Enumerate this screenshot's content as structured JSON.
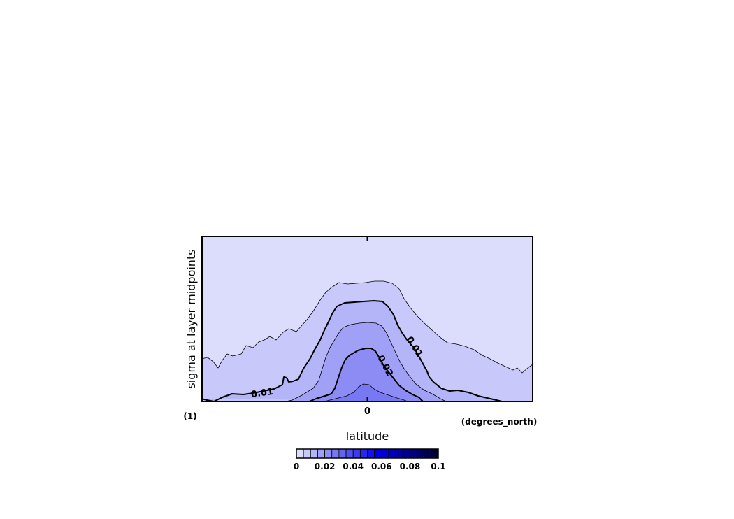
{
  "chart_data": {
    "type": "contour",
    "title": "",
    "xlabel": "latitude",
    "ylabel": "sigma at layer midpoints",
    "x_units": "(degrees_north)",
    "y_units": "(1)",
    "x_ticks": [
      0
    ],
    "x_tick_labels": [
      "0"
    ],
    "contour_levels": [
      0,
      0.005,
      0.01,
      0.015,
      0.02,
      0.025,
      0.03,
      0.035,
      0.04,
      0.045,
      0.05,
      0.055,
      0.06,
      0.065,
      0.07,
      0.075,
      0.08,
      0.085,
      0.09,
      0.095,
      0.1
    ],
    "contour_line_labels": [
      {
        "text": "0.01",
        "level": 0.01
      },
      {
        "text": "0.01",
        "level": 0.01
      },
      {
        "text": "0.02",
        "level": 0.02
      }
    ],
    "colorbar": {
      "min": 0,
      "max": 0.1,
      "tick_values": [
        0,
        0.02,
        0.04,
        0.06,
        0.08,
        0.1
      ],
      "tick_labels": [
        "0",
        "0.02",
        "0.04",
        "0.06",
        "0.08",
        "0.1"
      ],
      "colors": [
        "#dcdcfc",
        "#c8c8fa",
        "#b4b4f8",
        "#a0a0f6",
        "#8c8cf4",
        "#7878f2",
        "#6464f0",
        "#5050ee",
        "#3c3cec",
        "#2828ea",
        "#1414e8",
        "#0000e6",
        "#0000d0",
        "#0000ba",
        "#0000a4",
        "#00008e",
        "#000078",
        "#000062",
        "#00004c",
        "#000036"
      ]
    }
  }
}
